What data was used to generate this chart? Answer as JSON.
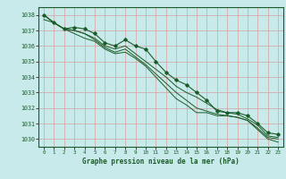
{
  "title": "Graphe pression niveau de la mer (hPa)",
  "bg_color": "#c8eaea",
  "grid_minor_color": "#e8a0a0",
  "grid_major_color": "#c09090",
  "line_color": "#1a5c28",
  "spine_color": "#1a5c28",
  "xlim": [
    -0.5,
    23.5
  ],
  "ylim": [
    1029.5,
    1038.5
  ],
  "yticks": [
    1030,
    1031,
    1032,
    1033,
    1034,
    1035,
    1036,
    1037,
    1038
  ],
  "xticks": [
    0,
    1,
    2,
    3,
    4,
    5,
    6,
    7,
    8,
    9,
    10,
    11,
    12,
    13,
    14,
    15,
    16,
    17,
    18,
    19,
    20,
    21,
    22,
    23
  ],
  "series": [
    [
      1038.0,
      1037.5,
      1037.1,
      1037.2,
      1037.1,
      1036.8,
      1036.2,
      1036.0,
      1036.4,
      1036.0,
      1035.8,
      1035.0,
      1034.3,
      1033.8,
      1033.5,
      1033.0,
      1032.5,
      1031.8,
      1031.7,
      1031.7,
      1031.5,
      1031.0,
      1030.4,
      1030.3
    ],
    [
      1038.0,
      1037.5,
      1037.1,
      1037.0,
      1036.8,
      1036.5,
      1036.0,
      1035.8,
      1036.0,
      1035.5,
      1035.0,
      1034.5,
      1034.0,
      1033.4,
      1033.0,
      1032.7,
      1032.3,
      1031.9,
      1031.7,
      1031.6,
      1031.3,
      1030.9,
      1030.2,
      1030.1
    ],
    [
      1038.0,
      1037.5,
      1037.1,
      1037.0,
      1036.8,
      1036.4,
      1035.9,
      1035.6,
      1035.8,
      1035.3,
      1034.8,
      1034.2,
      1033.6,
      1033.0,
      1032.5,
      1032.0,
      1031.8,
      1031.6,
      1031.5,
      1031.4,
      1031.2,
      1030.7,
      1030.1,
      1030.0
    ],
    [
      1037.7,
      1037.5,
      1037.1,
      1036.8,
      1036.5,
      1036.3,
      1035.8,
      1035.5,
      1035.6,
      1035.2,
      1034.7,
      1034.0,
      1033.3,
      1032.6,
      1032.2,
      1031.7,
      1031.7,
      1031.5,
      1031.5,
      1031.4,
      1031.2,
      1030.6,
      1030.0,
      1029.8
    ]
  ]
}
